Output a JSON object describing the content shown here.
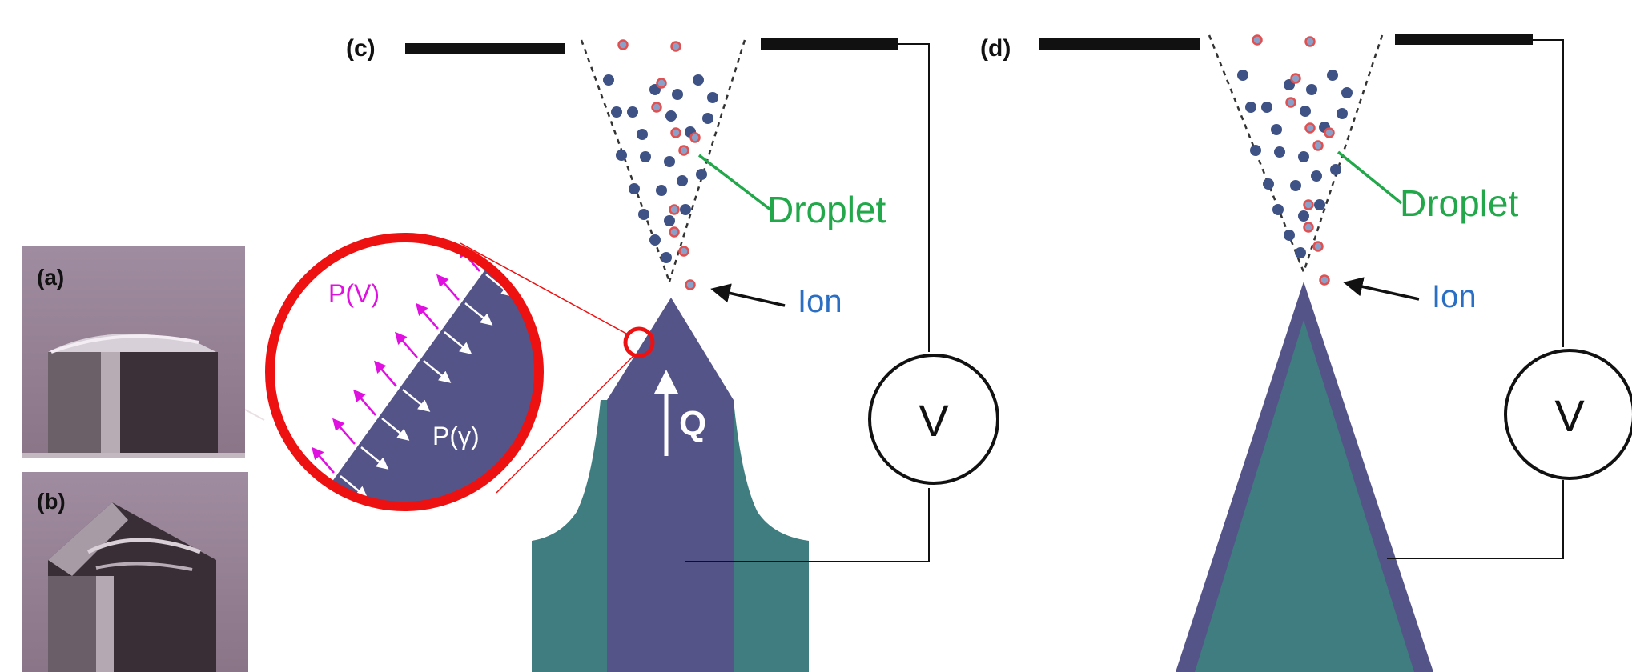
{
  "panels": {
    "a": {
      "label": "(a)"
    },
    "b": {
      "label": "(b)"
    },
    "c": {
      "label": "(c)",
      "droplet_label": "Droplet",
      "ion_label": "Ion",
      "voltage_label": "V",
      "flow_label": "Q",
      "inset_pressure_field": "P(V)",
      "inset_pressure_surface": "P(γ)"
    },
    "d": {
      "label": "(d)",
      "droplet_label": "Droplet",
      "ion_label": "Ion",
      "voltage_label": "V"
    }
  },
  "colors": {
    "liquid": "#545488",
    "emitter": "#407d80",
    "droplet_dot": "#3f5286",
    "ion_fill": "#8aa0c8",
    "ion_ring": "#e05050",
    "droplet_text": "#22a84a",
    "ion_text": "#2a6fc4",
    "field_arrow": "#e010e0",
    "inset_ring": "#ee1111",
    "photo_bg": "#9c8196"
  },
  "icons": [
    "voltmeter-icon",
    "flow-arrow-icon",
    "magnifier-ring-icon"
  ]
}
